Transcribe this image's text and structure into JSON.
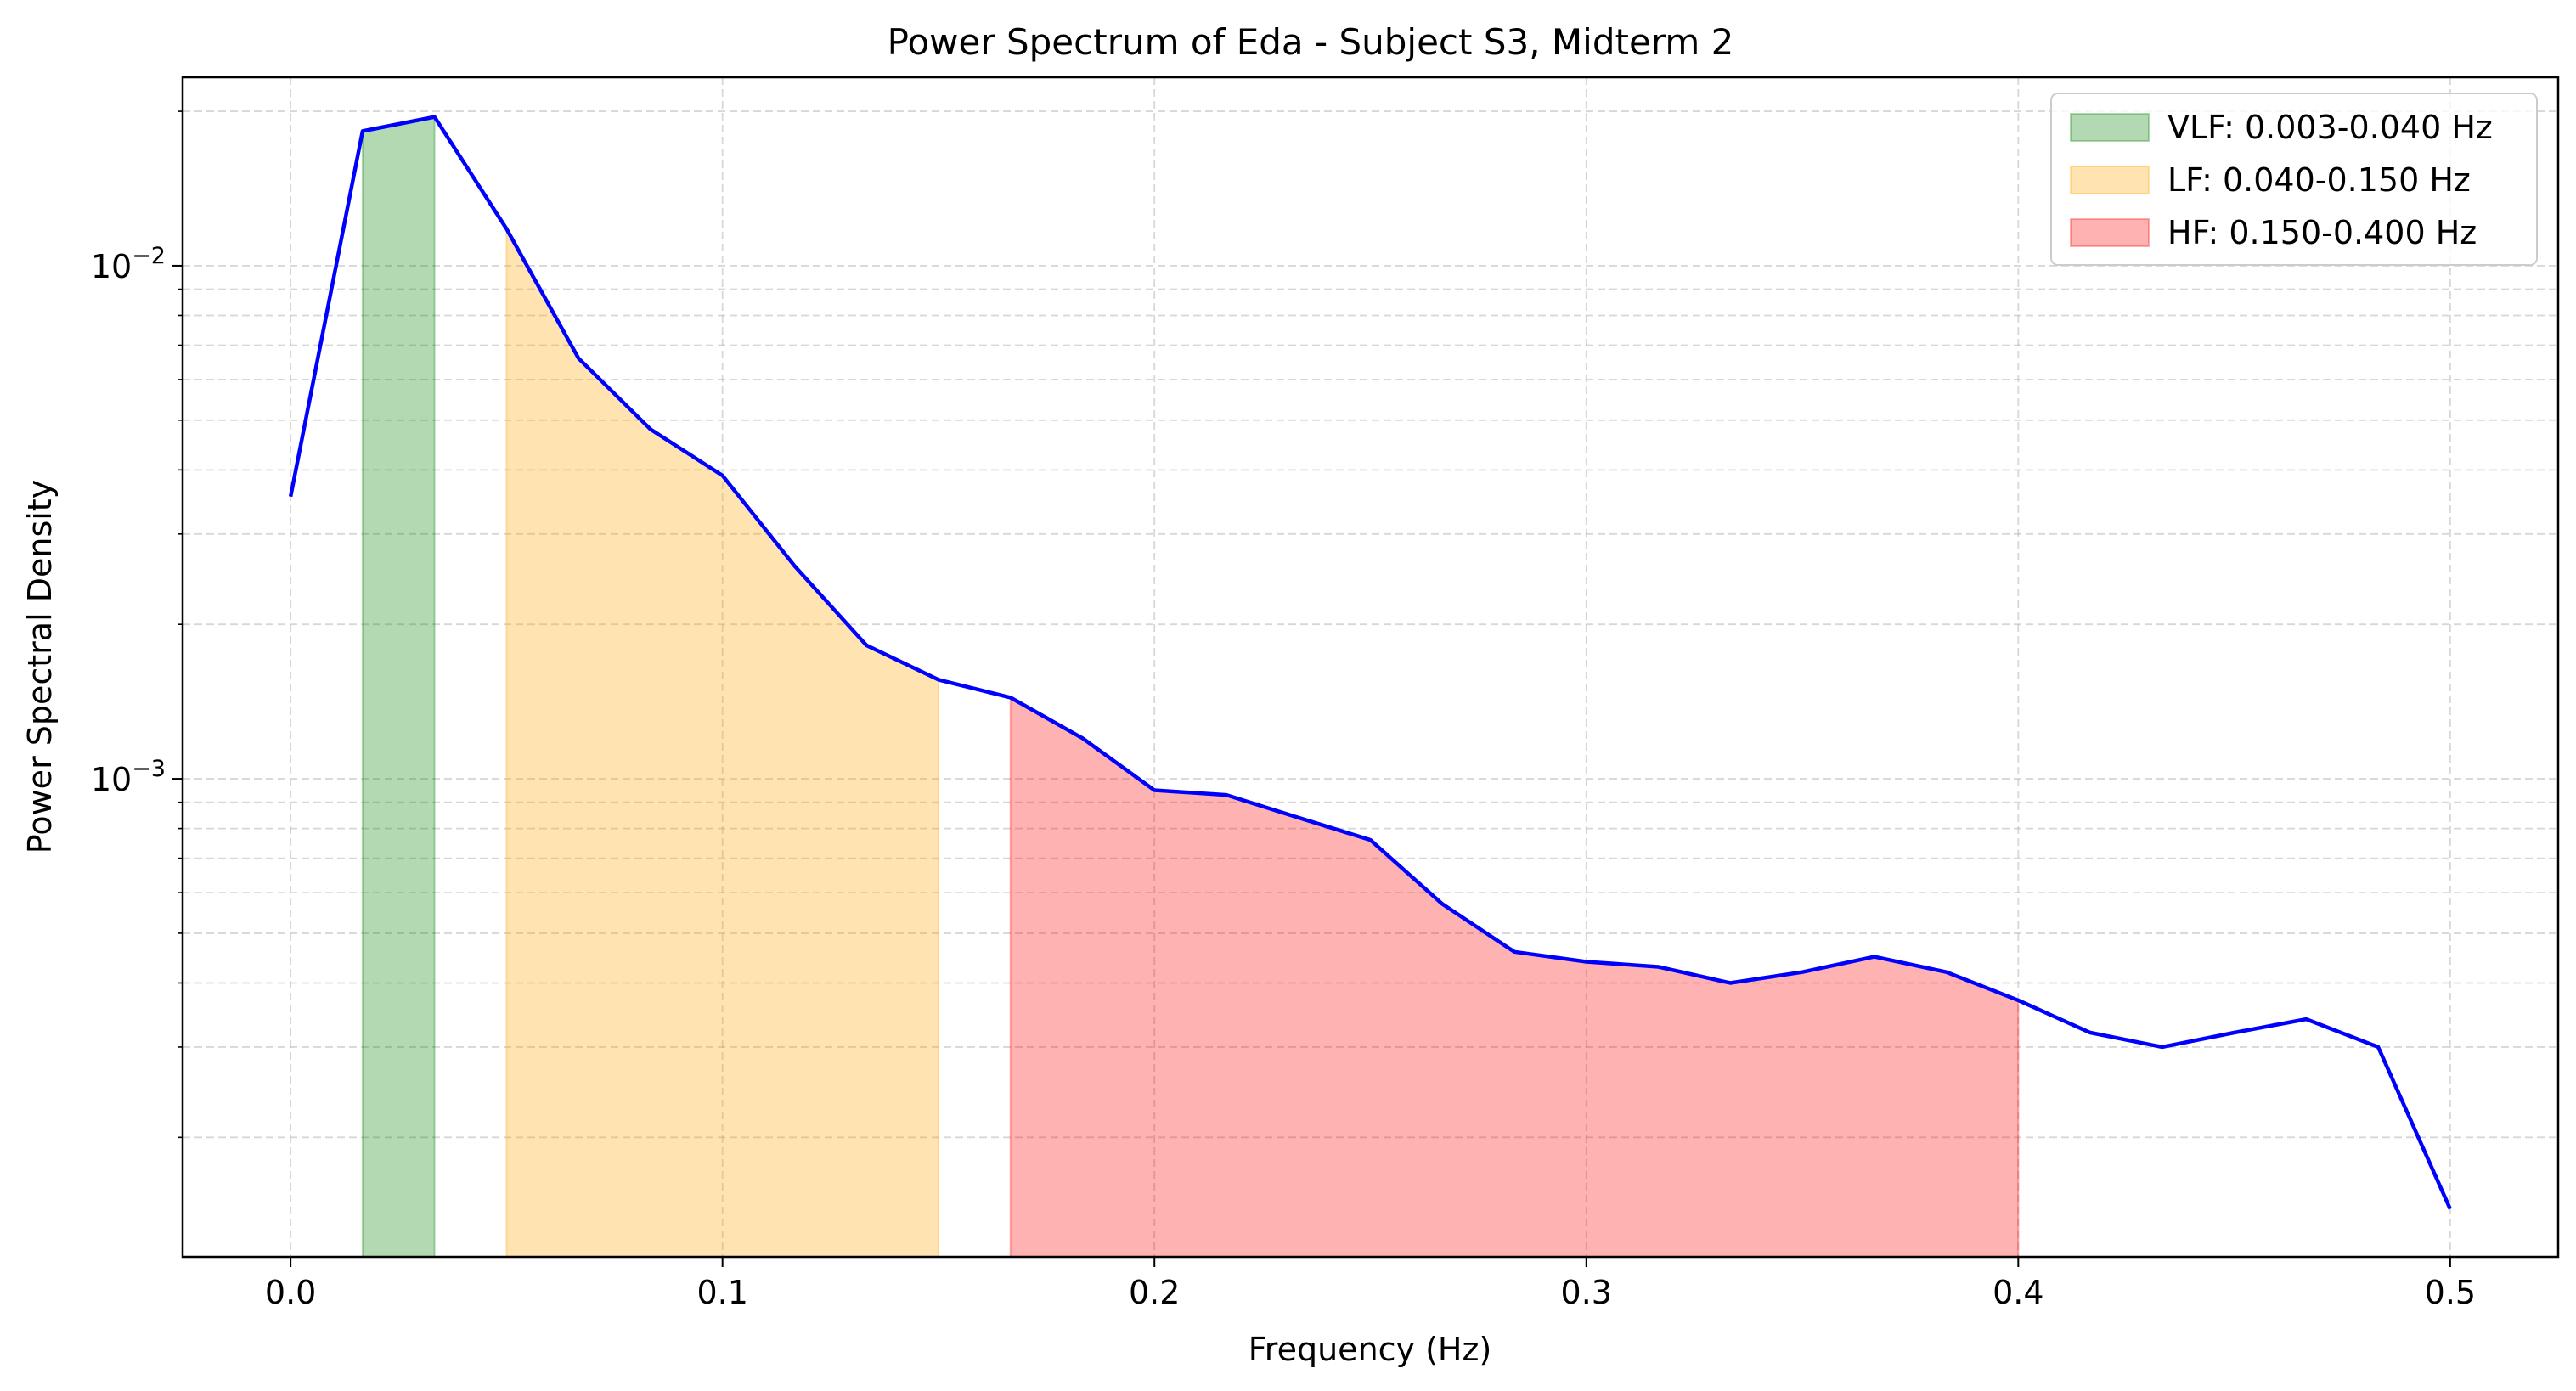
{
  "chart_data": {
    "type": "line",
    "title": "Power Spectrum of Eda - Subject S3, Midterm 2",
    "xlabel": "Frequency (Hz)",
    "ylabel": "Power Spectral Density",
    "xlim": [
      -0.025,
      0.525
    ],
    "ylim": [
      0.000117,
      0.0233
    ],
    "yscale": "log",
    "grid": true,
    "legend_position": "upper-right",
    "x_ticks": [
      0.0,
      0.1,
      0.2,
      0.3,
      0.4,
      0.5
    ],
    "x_tick_labels": [
      "0.0",
      "0.1",
      "0.2",
      "0.3",
      "0.4",
      "0.5"
    ],
    "y_major_ticks": [
      {
        "value": 0.001,
        "base": "10",
        "exp": "−3"
      },
      {
        "value": 0.01,
        "base": "10",
        "exp": "−2"
      }
    ],
    "y_minor_ticks": [
      0.0002,
      0.0003,
      0.0004,
      0.0005,
      0.0006,
      0.0007,
      0.0008,
      0.0009,
      0.002,
      0.003,
      0.004,
      0.005,
      0.006,
      0.007,
      0.008,
      0.009,
      0.02
    ],
    "series": [
      {
        "color": "#0000ff",
        "x": [
          0.0,
          0.01667,
          0.03333,
          0.05,
          0.06667,
          0.08333,
          0.1,
          0.11667,
          0.13333,
          0.15,
          0.16667,
          0.18333,
          0.2,
          0.21667,
          0.23333,
          0.25,
          0.26667,
          0.28333,
          0.3,
          0.31667,
          0.33333,
          0.35,
          0.36667,
          0.38333,
          0.4,
          0.41667,
          0.43333,
          0.45,
          0.46667,
          0.48333,
          0.5
        ],
        "y": [
          0.00355,
          0.0183,
          0.0195,
          0.0118,
          0.0066,
          0.0048,
          0.0039,
          0.0026,
          0.00182,
          0.00156,
          0.00144,
          0.0012,
          0.00095,
          0.00093,
          0.00084,
          0.00076,
          0.00057,
          0.00046,
          0.00044,
          0.00043,
          0.0004,
          0.00042,
          0.00045,
          0.00042,
          0.00037,
          0.00032,
          0.0003,
          0.00032,
          0.00034,
          0.0003,
          0.000145
        ]
      }
    ],
    "bands": [
      {
        "label": "VLF: 0.003-0.040 Hz",
        "x_start": 0.01667,
        "x_end": 0.03333,
        "color": "#008000",
        "opacity": 0.3
      },
      {
        "label": "LF: 0.040-0.150 Hz",
        "x_start": 0.05,
        "x_end": 0.15,
        "color": "#ffa500",
        "opacity": 0.3
      },
      {
        "label": "HF: 0.150-0.400 Hz",
        "x_start": 0.16667,
        "x_end": 0.4,
        "color": "#ff0000",
        "opacity": 0.3
      }
    ]
  }
}
